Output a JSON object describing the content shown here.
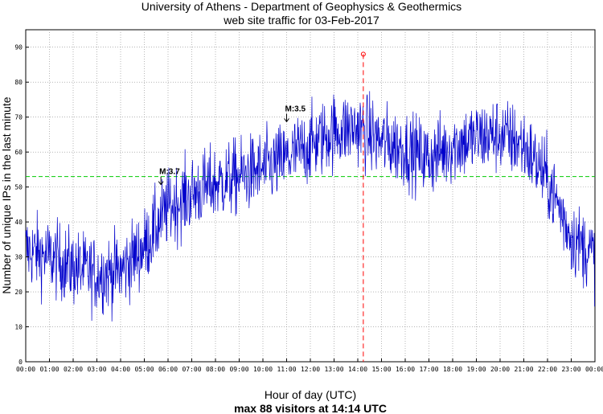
{
  "chart_data": {
    "type": "line",
    "title": "University of Athens - Department of Geophysics & Geothermics",
    "subtitle": "web site traffic for 03-Feb-2017",
    "xlabel": "Hour of day (UTC)",
    "ylabel": "Number of unique IPs in the last minute",
    "footer": "max 88 visitors at 14:14 UTC",
    "xlim": [
      0,
      24
    ],
    "ylim": [
      0,
      95
    ],
    "x_ticks": [
      "00:00",
      "01:00",
      "02:00",
      "03:00",
      "04:00",
      "05:00",
      "06:00",
      "07:00",
      "08:00",
      "09:00",
      "10:00",
      "11:00",
      "12:00",
      "13:00",
      "14:00",
      "15:00",
      "16:00",
      "17:00",
      "18:00",
      "19:00",
      "20:00",
      "21:00",
      "22:00",
      "23:00",
      "00:00"
    ],
    "y_ticks": [
      "0",
      "10",
      "20",
      "30",
      "40",
      "50",
      "60",
      "70",
      "80",
      "90"
    ],
    "grid": true,
    "series": [
      {
        "color": "#0000cc",
        "hourly_profile_hours": [
          0,
          1,
          2,
          3,
          4,
          5,
          6,
          7,
          8,
          9,
          10,
          11,
          12,
          13,
          14,
          15,
          16,
          17,
          18,
          19,
          20,
          21,
          22,
          23,
          24
        ],
        "hourly_profile_values": [
          32,
          30,
          27,
          25,
          26,
          33,
          44,
          48,
          51,
          53,
          55,
          58,
          62,
          66,
          67,
          63,
          61,
          58,
          62,
          64,
          65,
          62,
          52,
          36,
          30
        ]
      }
    ],
    "reference_line": {
      "value": 53,
      "color": "#00cc00",
      "style": "dashed"
    },
    "max_marker": {
      "x": 14.233,
      "y": 88,
      "color": "#ff0000"
    },
    "annotations": [
      {
        "text": "M:3.7",
        "x": 5.7,
        "y": 50
      },
      {
        "text": "M:3.5",
        "x": 11.0,
        "y": 68
      }
    ]
  }
}
